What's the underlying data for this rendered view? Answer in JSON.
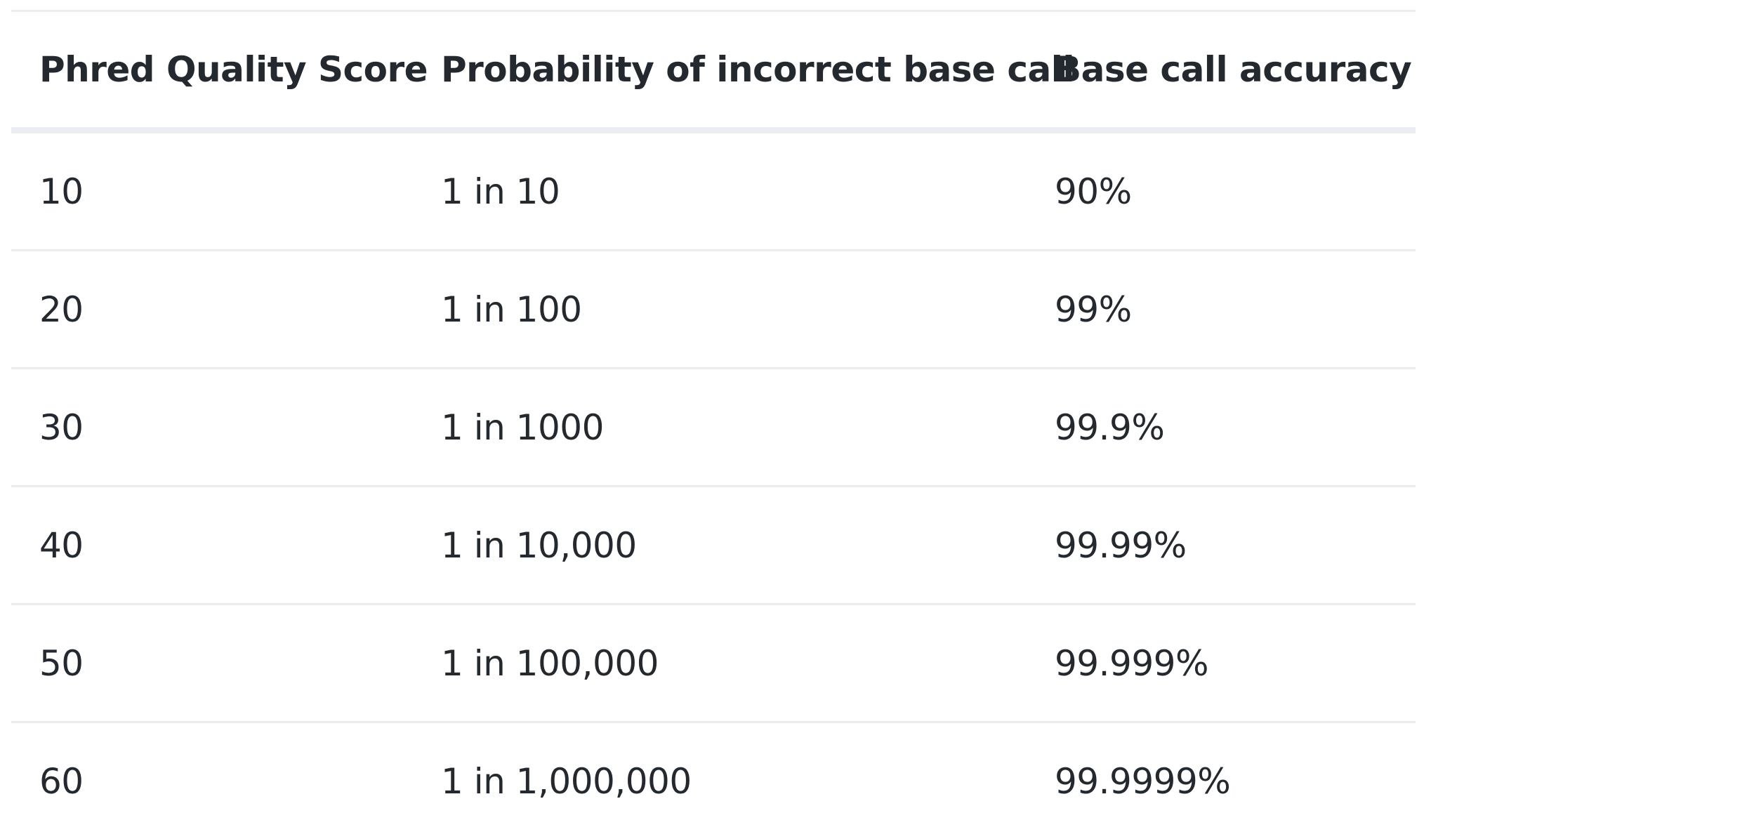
{
  "table": {
    "headers": [
      "Phred Quality Score",
      "Probability of incorrect base call",
      "Base call accuracy"
    ],
    "rows": [
      [
        "10",
        "1 in 10",
        "90%"
      ],
      [
        "20",
        "1 in 100",
        "99%"
      ],
      [
        "30",
        "1 in 1000",
        "99.9%"
      ],
      [
        "40",
        "1 in 10,000",
        "99.99%"
      ],
      [
        "50",
        "1 in 100,000",
        "99.999%"
      ],
      [
        "60",
        "1 in 1,000,000",
        "99.9999%"
      ]
    ]
  },
  "colors": {
    "text": "#24292f",
    "border": "#eaecef",
    "header_border": "#ebedf0",
    "background": "#ffffff"
  }
}
